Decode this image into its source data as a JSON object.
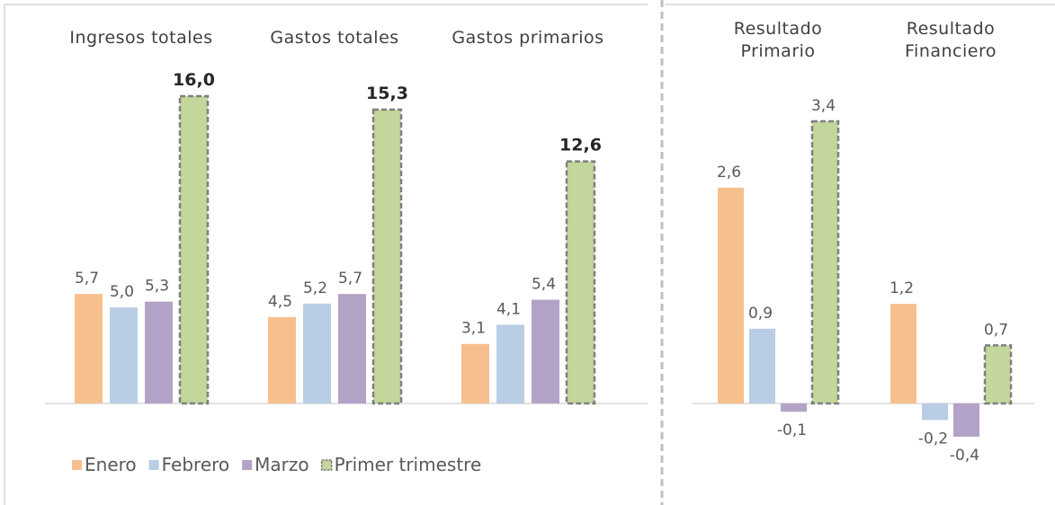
{
  "chart_data": [
    {
      "type": "bar",
      "categories": [
        "Ingresos totales",
        "Gastos totales",
        "Gastos primarios"
      ],
      "series": [
        {
          "name": "Enero",
          "color": "#f8bf8e",
          "values": [
            5.7,
            4.5,
            3.1
          ],
          "value_labels": [
            "5,7",
            "4,5",
            "3,1"
          ]
        },
        {
          "name": "Febrero",
          "color": "#b9cde5",
          "values": [
            5.0,
            5.2,
            4.1
          ],
          "value_labels": [
            "5,0",
            "5,2",
            "4,1"
          ]
        },
        {
          "name": "Marzo",
          "color": "#b3a2c7",
          "values": [
            5.3,
            5.7,
            5.4
          ],
          "value_labels": [
            "5,3",
            "5,7",
            "5,4"
          ]
        },
        {
          "name": "Primer trimestre",
          "color": "#c3d69b",
          "values": [
            16.0,
            15.3,
            12.6
          ],
          "value_labels": [
            "16,0",
            "15,3",
            "12,6"
          ]
        }
      ],
      "legend": "bottom"
    },
    {
      "type": "bar",
      "categories": [
        "Resultado Primario",
        "Resultado Financiero"
      ],
      "series": [
        {
          "color": "#f8bf8e",
          "values": [
            2.6,
            1.2
          ],
          "value_labels": [
            "2,6",
            "1,2"
          ]
        },
        {
          "color": "#b9cde5",
          "values": [
            0.9,
            -0.2
          ],
          "value_labels": [
            "0,9",
            "-0,2"
          ]
        },
        {
          "color": "#b3a2c7",
          "values": [
            -0.1,
            -0.4
          ],
          "value_labels": [
            "-0,1",
            "-0,4"
          ]
        },
        {
          "color": "#c3d69b",
          "values": [
            3.4,
            0.7
          ],
          "value_labels": [
            "3,4",
            "0,7"
          ]
        }
      ]
    }
  ]
}
